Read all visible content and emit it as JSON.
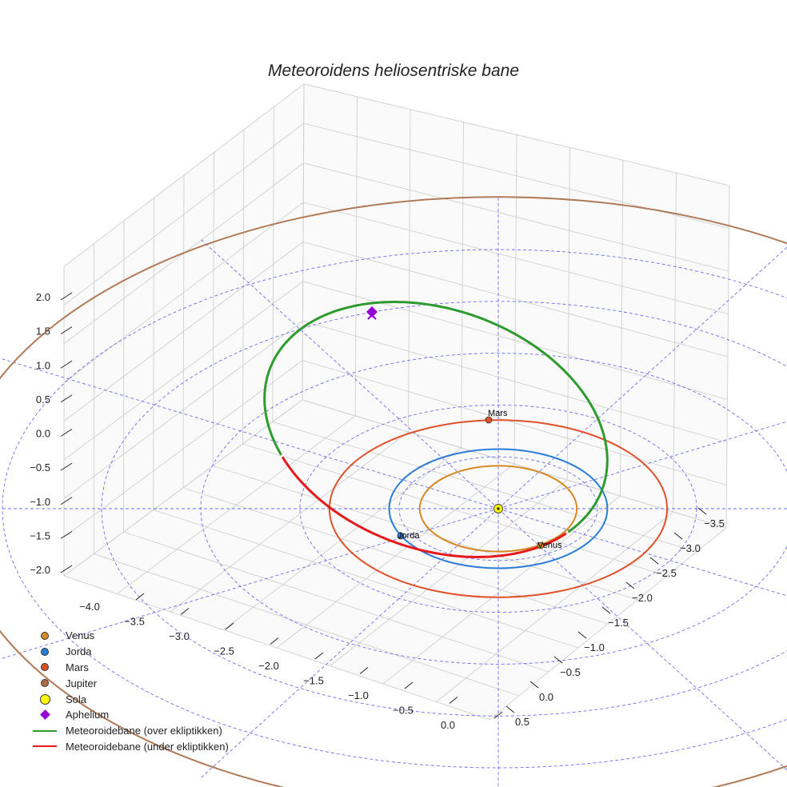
{
  "chart_data": {
    "type": "3d-line",
    "title": "Meteoroidens heliosentriske bane",
    "x_ticks": [
      "−4.0",
      "−3.5",
      "−3.0",
      "−2.5",
      "−2.0",
      "−1.5",
      "−1.0",
      "−0.5",
      "0.0"
    ],
    "y_ticks": [
      "0.5",
      "0.0",
      "−0.5",
      "−1.0",
      "−1.5",
      "−2.0",
      "−2.5",
      "−3.0",
      "−3.5"
    ],
    "z_ticks": [
      "2.0",
      "1.5",
      "1.0",
      "0.5",
      "0.0",
      "−0.5",
      "−1.0",
      "−1.5",
      "−2.0"
    ],
    "xlim": [
      -4.2,
      0.2
    ],
    "ylim": [
      -3.8,
      0.8
    ],
    "zlim": [
      -2.2,
      2.2
    ],
    "grid": true,
    "legend_position": "lower-left",
    "planets": [
      {
        "name": "Venus",
        "label": "Venus",
        "orbit_radius_au": 0.72,
        "x": 0.49,
        "y": -0.51,
        "color": "#d58a25"
      },
      {
        "name": "Jorda",
        "label": "Jorda",
        "orbit_radius_au": 1.0,
        "x": -0.71,
        "y": -0.71,
        "color": "#2b7bd8"
      },
      {
        "name": "Mars",
        "label": "Mars",
        "orbit_radius_au": 1.52,
        "x": -0.55,
        "y": 1.42,
        "color": "#e0502a"
      },
      {
        "name": "Jupiter",
        "label": "",
        "orbit_radius_au": 5.2,
        "color": "#b07a58"
      }
    ],
    "sun": {
      "name": "Sola",
      "x": 0,
      "y": 0,
      "z": 0,
      "color": "#ffff00"
    },
    "aphelion": {
      "name": "Aphelium",
      "x": -1.9,
      "y": 1.9,
      "z": 1.94,
      "color": "#9400d3"
    },
    "meteoroid_orbit": {
      "semi_major_axis_au": 1.86,
      "eccentricity": 0.46,
      "inclination_deg": 37,
      "above_ecliptic": {
        "name": "Meteoroidebane (over ekliptikken)",
        "color": "#2e9b2e"
      },
      "below_ecliptic": {
        "name": "Meteoroidebane (under ekliptikken)",
        "color": "#e61a1a"
      }
    },
    "ecliptic_grid": {
      "rings_au": [
        1,
        2,
        3,
        4,
        5
      ],
      "color": "#5555ee"
    }
  },
  "legend": [
    {
      "label": "Venus",
      "symbol": "dot",
      "color": "#d58a25"
    },
    {
      "label": "Jorda",
      "symbol": "dot",
      "color": "#2b7bd8"
    },
    {
      "label": "Mars",
      "symbol": "dot",
      "color": "#d4501f"
    },
    {
      "label": "Jupiter",
      "symbol": "dot",
      "color": "#b06a40"
    },
    {
      "label": "Sola",
      "symbol": "bigdot",
      "color": "#ffff00"
    },
    {
      "label": "Aphelium",
      "symbol": "diamond",
      "color": "#9400d3"
    },
    {
      "label": "Meteoroidebane (over ekliptikken)",
      "symbol": "line",
      "color": "#2e9b2e"
    },
    {
      "label": "Meteoroidebane (under ekliptikken)",
      "symbol": "line",
      "color": "#e61a1a"
    }
  ]
}
